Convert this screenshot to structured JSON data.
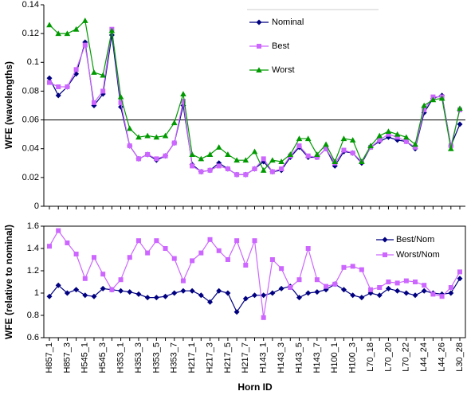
{
  "chart_data": [
    {
      "type": "line",
      "ylabel": "WFE (wavelengths)",
      "ylim": [
        0,
        0.14
      ],
      "yticks": [
        0,
        0.02,
        0.04,
        0.06,
        0.08,
        0.1,
        0.12,
        0.14
      ],
      "hline": 0.06,
      "legend": "upper right",
      "series": [
        {
          "name": "Nominal",
          "color": "#000080",
          "marker": "diamond",
          "values": [
            0.089,
            0.077,
            0.083,
            0.092,
            0.114,
            0.07,
            0.078,
            0.119,
            0.069,
            0.042,
            0.033,
            0.036,
            0.032,
            0.035,
            0.044,
            0.07,
            0.029,
            0.024,
            0.025,
            0.03,
            0.026,
            0.022,
            0.022,
            0.026,
            0.031,
            0.024,
            0.025,
            0.034,
            0.041,
            0.034,
            0.034,
            0.04,
            0.028,
            0.038,
            0.037,
            0.03,
            0.041,
            0.045,
            0.048,
            0.046,
            0.045,
            0.04,
            0.065,
            0.075,
            0.077,
            0.042,
            0.057
          ]
        },
        {
          "name": "Best",
          "color": "#cc66ff",
          "marker": "square",
          "values": [
            0.086,
            0.083,
            0.083,
            0.095,
            0.112,
            0.072,
            0.08,
            0.123,
            0.072,
            0.042,
            0.033,
            0.036,
            0.033,
            0.035,
            0.044,
            0.073,
            0.028,
            0.024,
            0.025,
            0.028,
            0.026,
            0.022,
            0.022,
            0.026,
            0.033,
            0.024,
            0.026,
            0.035,
            0.042,
            0.035,
            0.034,
            0.04,
            0.03,
            0.039,
            0.037,
            0.031,
            0.041,
            0.046,
            0.05,
            0.048,
            0.045,
            0.041,
            0.067,
            0.076,
            0.076,
            0.042,
            0.067
          ]
        },
        {
          "name": "Worst",
          "color": "#009900",
          "marker": "triangle",
          "values": [
            0.126,
            0.12,
            0.12,
            0.123,
            0.129,
            0.093,
            0.091,
            0.122,
            0.076,
            0.054,
            0.048,
            0.049,
            0.048,
            0.049,
            0.058,
            0.078,
            0.036,
            0.033,
            0.036,
            0.041,
            0.036,
            0.032,
            0.032,
            0.038,
            0.025,
            0.032,
            0.031,
            0.036,
            0.047,
            0.047,
            0.036,
            0.043,
            0.031,
            0.047,
            0.046,
            0.031,
            0.042,
            0.049,
            0.052,
            0.05,
            0.048,
            0.043,
            0.07,
            0.074,
            0.075,
            0.04,
            0.068
          ]
        }
      ]
    },
    {
      "type": "line",
      "ylabel": "WFE (relative to nominal)",
      "xlabel": "Horn ID",
      "ylim": [
        0.6,
        1.6
      ],
      "yticks": [
        0.6,
        0.8,
        1,
        1.2,
        1.4,
        1.6
      ],
      "legend": "upper right",
      "categories": [
        "H857_1",
        null,
        "H857_3",
        null,
        "H545_1",
        null,
        "H545_3",
        null,
        "H353_1",
        null,
        "H353_3",
        null,
        "H353_5",
        null,
        "H353_7",
        null,
        "H217_1",
        null,
        "H217_3",
        null,
        "H217_5",
        null,
        "H217_7",
        null,
        "H143_1",
        null,
        "H143_3",
        null,
        "H143_5",
        null,
        "H143_7",
        null,
        "H100_1",
        null,
        "H100_3",
        null,
        "L70_18",
        null,
        "L70_20",
        null,
        "L70_22",
        null,
        "L44_24",
        null,
        "L44_26",
        null,
        "L30_28"
      ],
      "series": [
        {
          "name": "Best/Nom",
          "color": "#000080",
          "marker": "diamond",
          "values": [
            0.97,
            1.07,
            1.0,
            1.03,
            0.98,
            0.97,
            1.04,
            1.03,
            1.02,
            1.01,
            0.99,
            0.96,
            0.96,
            0.97,
            1.0,
            1.02,
            1.02,
            0.98,
            0.92,
            1.02,
            1.0,
            0.83,
            0.95,
            0.98,
            0.98,
            1.0,
            1.04,
            1.06,
            0.96,
            1.0,
            1.01,
            1.03,
            1.08,
            1.03,
            0.98,
            0.96,
            1.0,
            0.98,
            1.04,
            1.02,
            1.0,
            0.98,
            1.02,
            1.0,
            0.99,
            1.0,
            1.13
          ]
        },
        {
          "name": "Worst/Nom",
          "color": "#cc66ff",
          "marker": "square",
          "values": [
            1.42,
            1.56,
            1.45,
            1.35,
            1.13,
            1.32,
            1.17,
            1.03,
            1.12,
            1.32,
            1.47,
            1.36,
            1.47,
            1.4,
            1.31,
            1.11,
            1.29,
            1.36,
            1.48,
            1.38,
            1.3,
            1.47,
            1.25,
            1.47,
            0.78,
            1.3,
            1.22,
            1.05,
            1.12,
            1.4,
            1.12,
            1.06,
            1.08,
            1.23,
            1.24,
            1.21,
            1.03,
            1.05,
            1.1,
            1.09,
            1.11,
            1.1,
            1.07,
            0.99,
            0.97,
            1.05,
            1.19
          ]
        }
      ]
    }
  ]
}
